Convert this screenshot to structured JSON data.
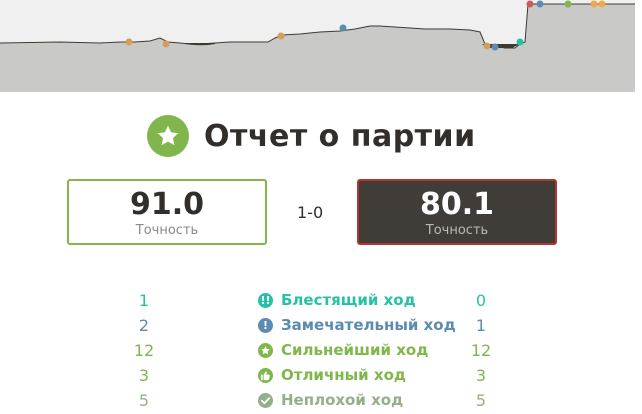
{
  "graph": {
    "description_colors": {
      "area": "#c9c9c8",
      "background": "#f0f0f0",
      "line": "#3d3a36"
    },
    "markers": [
      {
        "kind": "excellent",
        "color": "#d0a05a"
      },
      {
        "kind": "excellent",
        "color": "#d0a05a"
      },
      {
        "kind": "excellent",
        "color": "#d0a05a"
      },
      {
        "kind": "great",
        "color": "#5c8bb0"
      },
      {
        "kind": "excellent",
        "color": "#d0a05a"
      },
      {
        "kind": "great",
        "color": "#5c8bb0"
      },
      {
        "kind": "brilliant",
        "color": "#26c2a3"
      },
      {
        "kind": "blunder",
        "color": "#d05a5a"
      },
      {
        "kind": "great",
        "color": "#5c8bb0"
      },
      {
        "kind": "best",
        "color": "#81b64c"
      },
      {
        "kind": "excellent",
        "color": "#f0a848"
      },
      {
        "kind": "excellent",
        "color": "#f0a848"
      }
    ]
  },
  "report": {
    "title": "Отчет о партии",
    "icon": "star-icon",
    "accent_color": "#81b64c"
  },
  "players": {
    "white": {
      "accuracy": "91.0",
      "accuracy_label": "Точность"
    },
    "black": {
      "accuracy": "80.1",
      "accuracy_label": "Точность"
    }
  },
  "result": "1-0",
  "classifications": [
    {
      "label": "Блестящий ход",
      "icon": "brilliant-icon",
      "glyph": "!!",
      "color": "#26c2a3",
      "white": "1",
      "black": "0"
    },
    {
      "label": "Замечательный ход",
      "icon": "great-move-icon",
      "glyph": "!",
      "color": "#5c8bb0",
      "white": "2",
      "black": "1"
    },
    {
      "label": "Сильнейший ход",
      "icon": "best-move-star-icon",
      "glyph": "★",
      "color": "#81b64c",
      "white": "12",
      "black": "12"
    },
    {
      "label": "Отличный ход",
      "icon": "excellent-thumbs-up-icon",
      "glyph": "👍",
      "color": "#81b64c",
      "white": "3",
      "black": "3"
    },
    {
      "label": "Неплохой ход",
      "icon": "good-move-check-icon",
      "glyph": "✓",
      "color": "#95af8a",
      "white": "5",
      "black": "5"
    }
  ]
}
